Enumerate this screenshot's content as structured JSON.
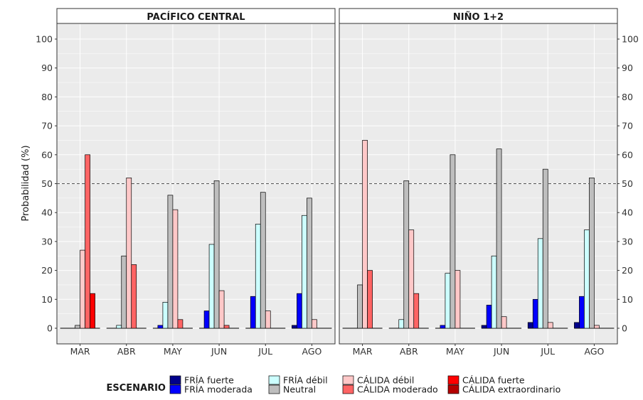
{
  "chart_data": {
    "type": "bar",
    "ylabel": "Probabilidad (%)",
    "ylim": [
      0,
      100
    ],
    "yticks": [
      0,
      10,
      20,
      30,
      40,
      50,
      60,
      70,
      80,
      90,
      100
    ],
    "reference_line": 50,
    "grid": true,
    "categories": [
      "MAR",
      "ABR",
      "MAY",
      "JUN",
      "JUL",
      "AGO"
    ],
    "panels": [
      {
        "title": "PACÍFICO CENTRAL",
        "series": [
          {
            "name": "FRÍA fuerte",
            "values": [
              0,
              0,
              0,
              0,
              0,
              1
            ]
          },
          {
            "name": "FRÍA moderada",
            "values": [
              0,
              0,
              1,
              6,
              11,
              12
            ]
          },
          {
            "name": "FRÍA débil",
            "values": [
              0,
              1,
              9,
              29,
              36,
              39
            ]
          },
          {
            "name": "Neutral",
            "values": [
              1,
              25,
              46,
              51,
              47,
              45
            ]
          },
          {
            "name": "CÁLIDA débil",
            "values": [
              27,
              52,
              41,
              13,
              6,
              3
            ]
          },
          {
            "name": "CÁLIDA moderado",
            "values": [
              60,
              22,
              3,
              1,
              0,
              0
            ]
          },
          {
            "name": "CÁLIDA fuerte",
            "values": [
              12,
              0,
              0,
              0,
              0,
              0
            ]
          },
          {
            "name": "CÁLIDA extraordinario",
            "values": [
              0,
              0,
              0,
              0,
              0,
              0
            ]
          }
        ]
      },
      {
        "title": "NIÑO 1+2",
        "series": [
          {
            "name": "FRÍA fuerte",
            "values": [
              0,
              0,
              0,
              1,
              2,
              2
            ]
          },
          {
            "name": "FRÍA moderada",
            "values": [
              0,
              0,
              1,
              8,
              10,
              11
            ]
          },
          {
            "name": "FRÍA débil",
            "values": [
              0,
              3,
              19,
              25,
              31,
              34
            ]
          },
          {
            "name": "Neutral",
            "values": [
              15,
              51,
              60,
              62,
              55,
              52
            ]
          },
          {
            "name": "CÁLIDA débil",
            "values": [
              65,
              34,
              20,
              4,
              2,
              1
            ]
          },
          {
            "name": "CÁLIDA moderado",
            "values": [
              20,
              12,
              0,
              0,
              0,
              0
            ]
          },
          {
            "name": "CÁLIDA fuerte",
            "values": [
              0,
              0,
              0,
              0,
              0,
              0
            ]
          },
          {
            "name": "CÁLIDA extraordinario",
            "values": [
              0,
              0,
              0,
              0,
              0,
              0
            ]
          }
        ]
      }
    ],
    "legend": {
      "title": "ESCENARIO",
      "position": "bottom",
      "entries": [
        {
          "label": "FRÍA fuerte",
          "color": "#00008B"
        },
        {
          "label": "FRÍA moderada",
          "color": "#0000FF"
        },
        {
          "label": "FRÍA débil",
          "color": "#CCFFFF"
        },
        {
          "label": "Neutral",
          "color": "#BEBEBE"
        },
        {
          "label": "CÁLIDA débil",
          "color": "#FFC8C8"
        },
        {
          "label": "CÁLIDA moderado",
          "color": "#FF6464"
        },
        {
          "label": "CÁLIDA fuerte",
          "color": "#FF0000"
        },
        {
          "label": "CÁLIDA extraordinario",
          "color": "#B40000"
        }
      ]
    },
    "colors": {
      "panel_bg": "#EBEBEB",
      "strip_bg": "#FFFFFF",
      "grid": "#FFFFFF",
      "reference_line": "#555555"
    }
  }
}
